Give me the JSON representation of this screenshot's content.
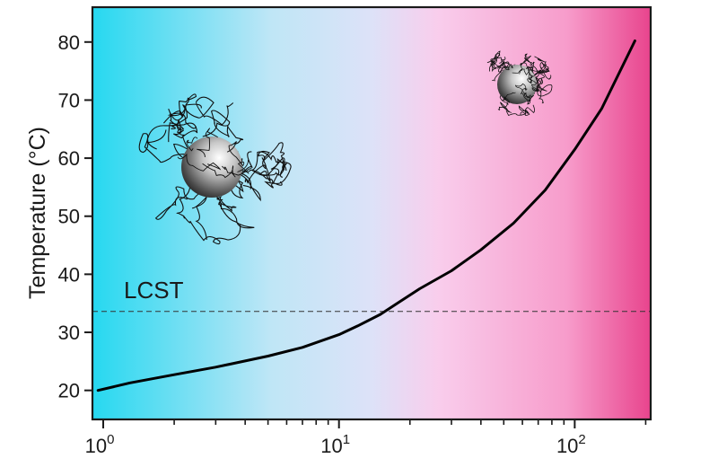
{
  "chart_data": {
    "type": "line",
    "title": "",
    "xlabel": "",
    "ylabel": "Temperature (°C)",
    "xscale": "log",
    "xlim": [
      0.9,
      210
    ],
    "ylim": [
      15,
      86
    ],
    "grid": false,
    "legend": "none",
    "x_ticks": [
      {
        "value": 1,
        "base": "10",
        "exp": "0"
      },
      {
        "value": 10,
        "base": "10",
        "exp": "1"
      },
      {
        "value": 100,
        "base": "10",
        "exp": "2"
      }
    ],
    "y_ticks": [
      20,
      30,
      40,
      50,
      60,
      70,
      80
    ],
    "series": [
      {
        "x": [
          0.95,
          1.3,
          2,
          3,
          5,
          7,
          10,
          12,
          15,
          18,
          22,
          30,
          40,
          55,
          75,
          100,
          130,
          180
        ],
        "y": [
          20.0,
          21.3,
          22.7,
          24.0,
          25.9,
          27.4,
          29.6,
          31.1,
          33.1,
          35.2,
          37.5,
          40.6,
          44.2,
          48.8,
          54.5,
          61.5,
          68.5,
          80.2
        ]
      }
    ],
    "reference_line": {
      "y": 33.6,
      "label": "LCST"
    },
    "background_gradient": [
      "#26d8f0",
      "#bfe6f6",
      "#dde2f8",
      "#f9cdec",
      "#f79ccb",
      "#e8448d"
    ]
  }
}
